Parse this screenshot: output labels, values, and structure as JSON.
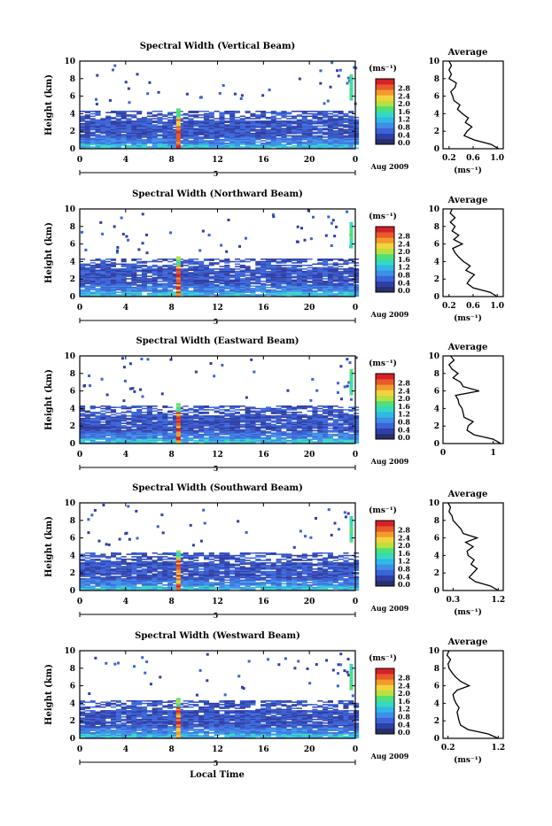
{
  "colors": {
    "colorbar": [
      "#2a2f6b",
      "#2f3fa8",
      "#3a64d8",
      "#3f8ee8",
      "#2fb9e6",
      "#35d9c0",
      "#4fe07a",
      "#b8e040",
      "#f2d43a",
      "#f39a2d",
      "#e85a28",
      "#d6202a"
    ],
    "line": "#000000"
  },
  "chart_data": [
    {
      "type": "heatmap",
      "title": "Spectral Width (Vertical Beam)",
      "ylabel": "Height (km)",
      "xticks": [
        "0",
        "4",
        "8",
        "12",
        "16",
        "20",
        "0"
      ],
      "xlim": [
        0,
        24
      ],
      "ylim": [
        0,
        10
      ],
      "yticks": [
        "0",
        "2",
        "4",
        "6",
        "8",
        "10"
      ],
      "date_label": "Aug 2009",
      "date_marker": "5",
      "colorbar": {
        "unit": "(ms⁻¹)",
        "ticks": [
          "0.0",
          "0.4",
          "0.8",
          "1.2",
          "1.6",
          "2.0",
          "2.4",
          "2.8"
        ]
      },
      "average": {
        "title": "Average",
        "xlabel": "(ms⁻¹)",
        "xticks": [
          "0.2",
          "0.6",
          "1.0"
        ],
        "xlim": [
          0.1,
          1.1
        ],
        "ylim": [
          0,
          10
        ],
        "heights": [
          0,
          0.5,
          1,
          1.5,
          2,
          2.5,
          3,
          3.5,
          4,
          4.5,
          5,
          5.5,
          6,
          6.5,
          7,
          7.5,
          8,
          8.5,
          9,
          9.5,
          10
        ],
        "values": [
          1.02,
          0.9,
          0.62,
          0.45,
          0.5,
          0.58,
          0.47,
          0.52,
          0.42,
          0.34,
          0.38,
          0.28,
          0.26,
          0.23,
          0.3,
          0.32,
          0.2,
          0.24,
          0.2,
          0.24,
          0.2
        ]
      }
    },
    {
      "type": "heatmap",
      "title": "Spectral Width (Northward Beam)",
      "ylabel": "Height (km)",
      "xticks": [
        "0",
        "4",
        "8",
        "12",
        "16",
        "20",
        "0"
      ],
      "xlim": [
        0,
        24
      ],
      "ylim": [
        0,
        10
      ],
      "yticks": [
        "0",
        "2",
        "4",
        "6",
        "8",
        "10"
      ],
      "date_label": "Aug 2009",
      "date_marker": "5",
      "colorbar": {
        "unit": "(ms⁻¹)",
        "ticks": [
          "0.0",
          "0.4",
          "0.8",
          "1.2",
          "1.6",
          "2.0",
          "2.4",
          "2.8"
        ]
      },
      "average": {
        "title": "Average",
        "xlabel": "(ms⁻¹)",
        "xticks": [
          "0.2",
          "0.6",
          "1.0"
        ],
        "xlim": [
          0.1,
          1.1
        ],
        "ylim": [
          0,
          10
        ],
        "heights": [
          0,
          0.5,
          1,
          1.5,
          2,
          2.5,
          3,
          3.5,
          4,
          4.5,
          5,
          5.5,
          6,
          6.5,
          7,
          7.5,
          8,
          8.5,
          9,
          9.5,
          10
        ],
        "values": [
          1.0,
          0.88,
          0.6,
          0.5,
          0.55,
          0.62,
          0.48,
          0.55,
          0.44,
          0.36,
          0.3,
          0.26,
          0.42,
          0.28,
          0.36,
          0.25,
          0.3,
          0.22,
          0.3,
          0.22,
          0.25
        ]
      }
    },
    {
      "type": "heatmap",
      "title": "Spectral Width (Eastward Beam)",
      "ylabel": "Height (km)",
      "xticks": [
        "0",
        "4",
        "8",
        "12",
        "16",
        "20",
        "0"
      ],
      "xlim": [
        0,
        24
      ],
      "ylim": [
        0,
        10
      ],
      "yticks": [
        "0",
        "2",
        "4",
        "6",
        "8",
        "10"
      ],
      "date_label": "Aug 2009",
      "date_marker": "5",
      "colorbar": {
        "unit": "(ms⁻¹)",
        "ticks": [
          "0.0",
          "0.4",
          "0.8",
          "1.2",
          "1.6",
          "2.0",
          "2.4",
          "2.8"
        ]
      },
      "average": {
        "title": "Average",
        "xlabel": "",
        "xticks": [
          "0",
          "1"
        ],
        "xlim": [
          0,
          1.2
        ],
        "ylim": [
          0,
          10
        ],
        "heights": [
          0,
          0.5,
          1,
          1.5,
          2,
          2.5,
          3,
          3.5,
          4,
          4.5,
          5,
          5.5,
          6,
          6.5,
          7,
          7.5,
          8,
          8.5,
          9,
          9.5,
          10
        ],
        "values": [
          1.15,
          1.0,
          0.62,
          0.48,
          0.5,
          0.6,
          0.42,
          0.4,
          0.38,
          0.32,
          0.3,
          0.25,
          0.72,
          0.4,
          0.35,
          0.2,
          0.3,
          0.18,
          0.12,
          0.22,
          0.15
        ]
      }
    },
    {
      "type": "heatmap",
      "title": "Spectral Width (Southward Beam)",
      "ylabel": "Height (km)",
      "xticks": [
        "0",
        "4",
        "8",
        "12",
        "16",
        "20",
        "0"
      ],
      "xlim": [
        0,
        24
      ],
      "ylim": [
        0,
        10
      ],
      "yticks": [
        "0",
        "2",
        "4",
        "6",
        "8",
        "10"
      ],
      "date_label": "Aug 2009",
      "date_marker": "5",
      "colorbar": {
        "unit": "(ms⁻¹)",
        "ticks": [
          "0.0",
          "0.4",
          "0.8",
          "1.2",
          "1.6",
          "2.0",
          "2.4",
          "2.8"
        ]
      },
      "average": {
        "title": "Average",
        "xlabel": "(ms⁻¹)",
        "xticks": [
          "0.3",
          "1.2"
        ],
        "xlim": [
          0.1,
          1.3
        ],
        "ylim": [
          0,
          10
        ],
        "heights": [
          0,
          0.5,
          1,
          1.5,
          2,
          2.5,
          3,
          3.5,
          4,
          4.5,
          5,
          5.5,
          6,
          6.5,
          7,
          7.5,
          8,
          8.5,
          9,
          9.5,
          10
        ],
        "values": [
          1.2,
          1.05,
          0.75,
          0.62,
          0.7,
          0.78,
          0.66,
          0.72,
          0.6,
          0.58,
          0.7,
          0.55,
          0.78,
          0.5,
          0.46,
          0.38,
          0.3,
          0.28,
          0.22,
          0.25,
          0.2
        ]
      }
    },
    {
      "type": "heatmap",
      "title": "Spectral Width (Westward Beam)",
      "ylabel": "Height (km)",
      "xticks": [
        "0",
        "4",
        "8",
        "12",
        "16",
        "20",
        "0"
      ],
      "xlim": [
        0,
        24
      ],
      "ylim": [
        0,
        10
      ],
      "yticks": [
        "0",
        "2",
        "4",
        "6",
        "8",
        "10"
      ],
      "date_label": "Aug 2009",
      "date_marker": "5",
      "colorbar": {
        "unit": "(ms⁻¹)",
        "ticks": [
          "0.0",
          "0.4",
          "0.8",
          "1.2",
          "1.6",
          "2.0",
          "2.4",
          "2.8"
        ]
      },
      "average": {
        "title": "Average",
        "xlabel": "(ms⁻¹)",
        "xticks": [
          "0.2",
          "1.2"
        ],
        "xlim": [
          0.1,
          1.3
        ],
        "ylim": [
          0,
          10
        ],
        "heights": [
          0,
          0.5,
          1,
          1.5,
          2,
          2.5,
          3,
          3.5,
          4,
          4.5,
          5,
          5.5,
          6,
          6.5,
          7,
          7.5,
          8,
          8.5,
          9,
          9.5,
          10
        ],
        "values": [
          1.2,
          1.0,
          0.6,
          0.45,
          0.42,
          0.4,
          0.38,
          0.42,
          0.36,
          0.32,
          0.3,
          0.38,
          0.62,
          0.45,
          0.35,
          0.28,
          0.22,
          0.2,
          0.25,
          0.18,
          0.22
        ]
      }
    }
  ],
  "footer": {
    "xlabel": "Local Time"
  }
}
